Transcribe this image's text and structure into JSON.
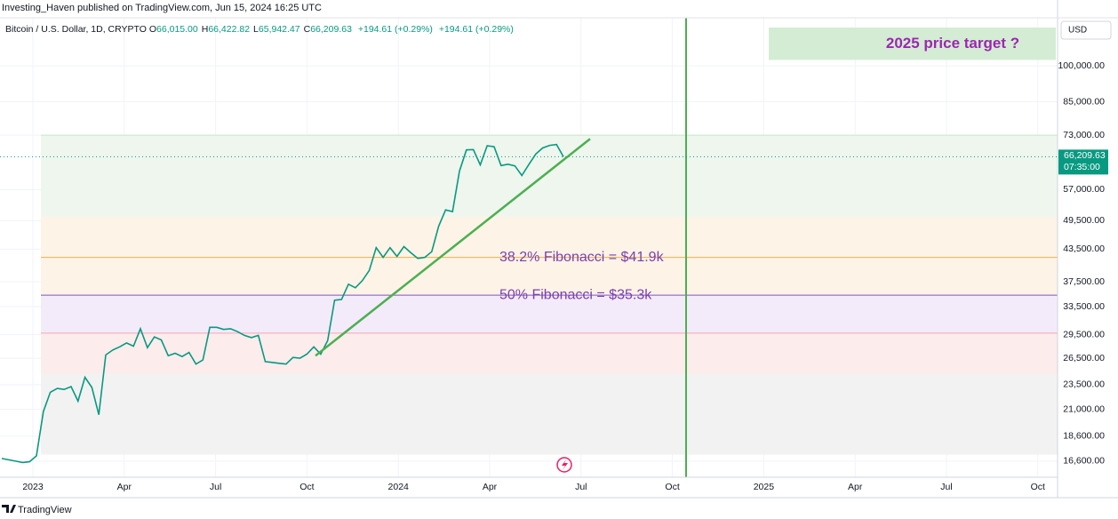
{
  "chart_data": {
    "type": "line",
    "header": "Investing_Haven published on TradingView.com, Jun 15, 2024 16:25 UTC",
    "title": "Bitcoin / U.S. Dollar, 1D, CRYPTO",
    "ohlc": [
      {
        "key": "O",
        "value": "66,015.00"
      },
      {
        "key": "H",
        "value": "66,422.82"
      },
      {
        "key": "L",
        "value": "65,942.47"
      },
      {
        "key": "C",
        "value": "66,209.63"
      }
    ],
    "change": [
      "+194.61 (+0.29%)",
      "+194.61 (+0.29%)"
    ],
    "currency": "USD",
    "footer": "TradingView",
    "color": "#089981",
    "values": [
      16800,
      16700,
      16600,
      16500,
      16550,
      17000,
      20800,
      22700,
      23100,
      23000,
      23300,
      21800,
      24300,
      23200,
      20500,
      26900,
      27500,
      27900,
      28400,
      28000,
      30300,
      27800,
      29200,
      28800,
      26800,
      27100,
      26700,
      27200,
      25800,
      26300,
      30500,
      30500,
      30200,
      30300,
      29900,
      29400,
      29100,
      29400,
      26100,
      26000,
      25900,
      25800,
      26600,
      26500,
      27000,
      27900,
      27000,
      28700,
      34500,
      34600,
      37100,
      36500,
      37700,
      39500,
      43800,
      41900,
      43800,
      42100,
      44000,
      42800,
      41700,
      41900,
      43000,
      48300,
      52000,
      51600,
      62000,
      68300,
      68400,
      63800,
      69600,
      69300,
      63600,
      64000,
      63500,
      60800,
      63900,
      67000,
      68900,
      69700,
      70000,
      66209.63
    ],
    "x_labels": [
      "2023",
      "Apr",
      "Jul",
      "Oct",
      "2024",
      "Apr",
      "Jul",
      "Oct",
      "2025",
      "Apr",
      "Jul",
      "Oct"
    ],
    "log_scale": true,
    "grid": true,
    "ylim": [
      15430,
      124500
    ],
    "yticks": [
      {
        "value": 16600,
        "label": "16,600.00"
      },
      {
        "value": 18600,
        "label": "18,600.00"
      },
      {
        "value": 21000,
        "label": "21,000.00"
      },
      {
        "value": 23500,
        "label": "23,500.00"
      },
      {
        "value": 26500,
        "label": "26,500.00"
      },
      {
        "value": 29500,
        "label": "29,500.00"
      },
      {
        "value": 33500,
        "label": "33,500.00"
      },
      {
        "value": 37500,
        "label": "37,500.00"
      },
      {
        "value": 43500,
        "label": "43,500.00"
      },
      {
        "value": 49500,
        "label": "49,500.00"
      },
      {
        "value": 57000,
        "label": "57,000.00"
      },
      {
        "value": 73000,
        "label": "73,000.00"
      },
      {
        "value": 85000,
        "label": "85,000.00"
      },
      {
        "value": 100000,
        "label": "100,000.00"
      }
    ],
    "last_price": {
      "value": 66209.63,
      "label": "66,209.63"
    },
    "countdown": "07:35:00",
    "fib_zones": [
      {
        "from": 50400,
        "to": 73000,
        "color": "#eef6ee"
      },
      {
        "from": 41900,
        "to": 50400,
        "color": "#fdf3e6"
      },
      {
        "from": 35300,
        "to": 41900,
        "color": "#fdf3e6"
      },
      {
        "from": 29700,
        "to": 35300,
        "color": "#f3ebfa"
      },
      {
        "from": 24700,
        "to": 29700,
        "color": "#fcecec"
      },
      {
        "from": 17100,
        "to": 24700,
        "color": "#f2f2f2"
      }
    ],
    "fib_lines": [
      {
        "value": 73000,
        "color": "#c8e6c9"
      },
      {
        "value": 41900,
        "color": "#f0b04a"
      },
      {
        "value": 35300,
        "color": "#7e57c2"
      },
      {
        "value": 29700,
        "color": "#f4a6b4"
      }
    ],
    "trendline": {
      "values": [
        26800,
        71800
      ],
      "color": "#4caf50"
    },
    "target_zone": {
      "from": 102800,
      "to": 119100,
      "color": "#d4ecd4"
    },
    "annotations": [
      {
        "text": "2025 price target ?",
        "value": 110600,
        "color": "#9c27b0"
      },
      {
        "text": "38.2% Fibonacci = $41.9k",
        "value": 41900,
        "color": "#7b3fb0"
      },
      {
        "text": "50% Fibonacci = $35.3k",
        "value": 35300,
        "color": "#7b3fb0"
      }
    ]
  }
}
